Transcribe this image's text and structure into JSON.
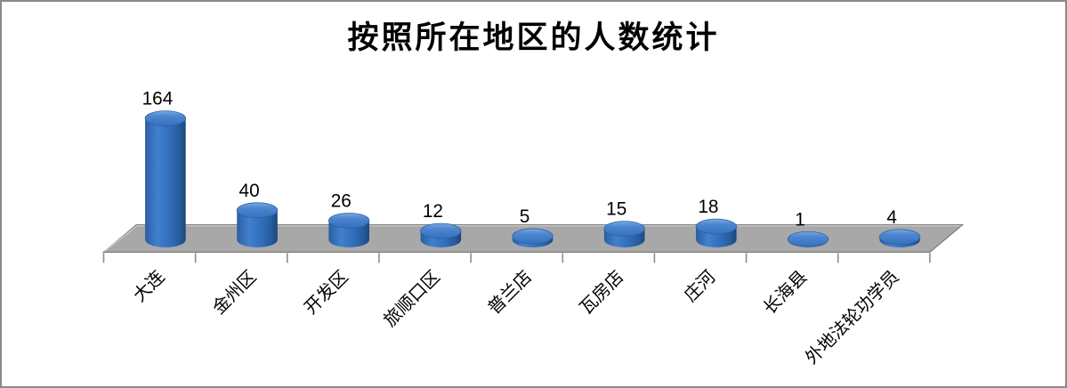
{
  "window": {
    "background": "#ffffff",
    "border_color": "#8a8a8a"
  },
  "chart_data": {
    "type": "bar",
    "style": "3d-cylinder",
    "title": "按照所在地区的人数统计",
    "categories": [
      "大连",
      "金州区",
      "开发区",
      "旅顺口区",
      "普兰店",
      "瓦房店",
      "庄河",
      "长海县",
      "外地法轮功学员"
    ],
    "values": [
      164,
      40,
      26,
      12,
      5,
      15,
      18,
      1,
      4
    ],
    "data_labels_shown": true,
    "legend_position": "none",
    "value_axis_visible": false,
    "category_label_rotation_deg": -45,
    "colors": {
      "bar_main": "#3470bd",
      "bar_highlight": "#4f8ad2",
      "bar_edge_dark": "#1b4779",
      "bar_top_light": "#79aae2",
      "floor": "#a8a8a8",
      "floor_edge": "#7f7f7f",
      "floor_highlight": "#cfcfcf",
      "tick": "#8c8c8c",
      "text": "#000000"
    }
  }
}
